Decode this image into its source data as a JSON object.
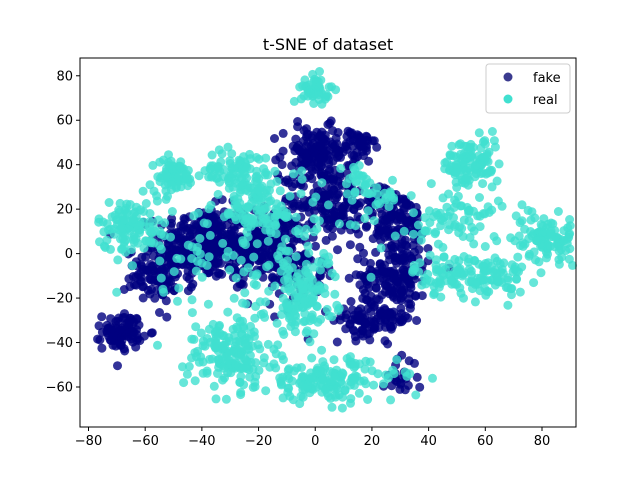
{
  "chart_data": {
    "type": "scatter",
    "title": "t-SNE of dataset",
    "xlabel": "",
    "ylabel": "",
    "xlim": [
      -83,
      92
    ],
    "ylim": [
      -78,
      88
    ],
    "xticks": [
      -80,
      -60,
      -40,
      -20,
      0,
      20,
      40,
      60,
      80
    ],
    "yticks": [
      -60,
      -40,
      -20,
      0,
      20,
      40,
      60,
      80
    ],
    "grid": false,
    "legend_position": "top-right",
    "series": [
      {
        "name": "fake",
        "color": "#000080",
        "legend_color": "#3b3b8f",
        "marker": "circle",
        "alpha": 0.8,
        "clusters": [
          {
            "cx": -40,
            "cy": 5,
            "sx": 8,
            "sy": 8,
            "n": 260
          },
          {
            "cx": -20,
            "cy": 5,
            "sx": 8,
            "sy": 8,
            "n": 200
          },
          {
            "cx": -55,
            "cy": -10,
            "sx": 6,
            "sy": 6,
            "n": 100
          },
          {
            "cx": -68,
            "cy": -35,
            "sx": 3.5,
            "sy": 4,
            "n": 90
          },
          {
            "cx": 0,
            "cy": 45,
            "sx": 6,
            "sy": 6,
            "n": 140
          },
          {
            "cx": 15,
            "cy": 48,
            "sx": 3,
            "sy": 4,
            "n": 40
          },
          {
            "cx": 5,
            "cy": 25,
            "sx": 8,
            "sy": 8,
            "n": 140
          },
          {
            "cx": 28,
            "cy": 15,
            "sx": 6,
            "sy": 7,
            "n": 130
          },
          {
            "cx": 28,
            "cy": -10,
            "sx": 6,
            "sy": 8,
            "n": 160
          },
          {
            "cx": 20,
            "cy": -30,
            "sx": 7,
            "sy": 4,
            "n": 90
          },
          {
            "cx": 30,
            "cy": -55,
            "sx": 3,
            "sy": 4,
            "n": 25
          },
          {
            "cx": -10,
            "cy": -5,
            "sx": 10,
            "sy": 10,
            "n": 110
          }
        ]
      },
      {
        "name": "real",
        "color": "#40e0d0",
        "legend_color": "#40e0d0",
        "marker": "circle",
        "alpha": 0.8,
        "clusters": [
          {
            "cx": 0,
            "cy": 74,
            "sx": 2.5,
            "sy": 3,
            "n": 50
          },
          {
            "cx": 55,
            "cy": 40,
            "sx": 5,
            "sy": 6,
            "n": 110
          },
          {
            "cx": 82,
            "cy": 7,
            "sx": 6,
            "sy": 5,
            "n": 110
          },
          {
            "cx": 55,
            "cy": -10,
            "sx": 10,
            "sy": 5,
            "n": 140
          },
          {
            "cx": 50,
            "cy": 15,
            "sx": 8,
            "sy": 6,
            "n": 70
          },
          {
            "cx": -65,
            "cy": 12,
            "sx": 6,
            "sy": 6,
            "n": 110
          },
          {
            "cx": -50,
            "cy": 35,
            "sx": 4,
            "sy": 4,
            "n": 70
          },
          {
            "cx": -27,
            "cy": 37,
            "sx": 6,
            "sy": 5,
            "n": 90
          },
          {
            "cx": -30,
            "cy": -45,
            "sx": 8,
            "sy": 8,
            "n": 160
          },
          {
            "cx": 5,
            "cy": -57,
            "sx": 12,
            "sy": 5,
            "n": 160
          },
          {
            "cx": -5,
            "cy": -20,
            "sx": 6,
            "sy": 8,
            "n": 110
          },
          {
            "cx": -20,
            "cy": 20,
            "sx": 8,
            "sy": 6,
            "n": 90
          },
          {
            "cx": -10,
            "cy": 0,
            "sx": 14,
            "sy": 14,
            "n": 90
          },
          {
            "cx": -40,
            "cy": -5,
            "sx": 12,
            "sy": 12,
            "n": 45
          },
          {
            "cx": 20,
            "cy": 25,
            "sx": 5,
            "sy": 5,
            "n": 30
          },
          {
            "cx": 15,
            "cy": 35,
            "sx": 2,
            "sy": 2,
            "n": 12
          }
        ]
      }
    ]
  }
}
